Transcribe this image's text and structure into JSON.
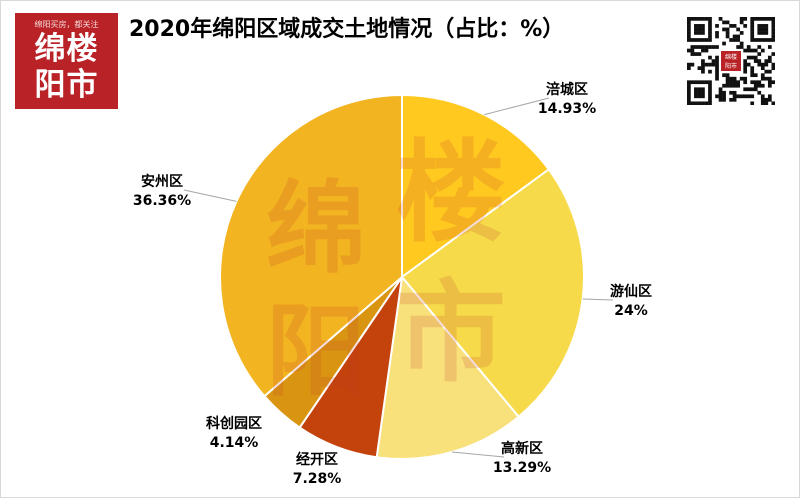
{
  "header": {
    "title": "2020年绵阳区域成交土地情况（占比：%）"
  },
  "logo": {
    "tagline": "绵阳买房，都关注",
    "line1": "绵楼",
    "line2": "阳市",
    "brand_color": "#b92327"
  },
  "qr": {
    "center_label": "绵楼阳市"
  },
  "watermark": {
    "chars": [
      "绵",
      "阳",
      "楼",
      "市"
    ]
  },
  "chart_data": {
    "type": "pie",
    "title": "2020年绵阳区域成交土地情况（占比：%）",
    "unit": "%",
    "start_angle_deg": 0,
    "direction": "clockwise",
    "slices": [
      {
        "label": "涪城区",
        "value": 14.93,
        "display": "14.93%",
        "color": "#ffc91f"
      },
      {
        "label": "游仙区",
        "value": 24,
        "display": "24%",
        "color": "#f7da4a"
      },
      {
        "label": "高新区",
        "value": 13.29,
        "display": "13.29%",
        "color": "#f8e07a"
      },
      {
        "label": "经开区",
        "value": 7.28,
        "display": "7.28%",
        "color": "#c4420b"
      },
      {
        "label": "科创园区",
        "value": 4.14,
        "display": "4.14%",
        "color": "#d99512"
      },
      {
        "label": "安州区",
        "value": 36.36,
        "display": "36.36%",
        "color": "#f2b420"
      }
    ]
  }
}
